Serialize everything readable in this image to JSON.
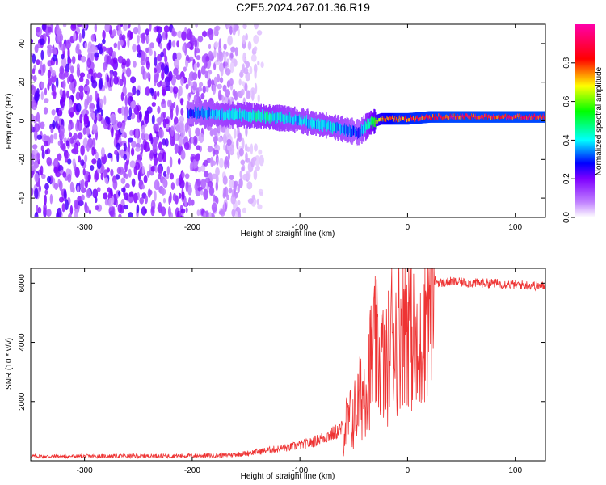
{
  "title": "C2E5.2024.267.01.36.R19",
  "chart_data": [
    {
      "type": "heatmap",
      "xlabel": "Height of straight line (km)",
      "ylabel": "Frequency (Hz)",
      "xlim": [
        -350,
        128
      ],
      "ylim": [
        -50,
        50
      ],
      "xticks": [
        -300,
        -200,
        -100,
        0,
        100
      ],
      "yticks": [
        -40,
        -20,
        0,
        20,
        40
      ],
      "colorbar": {
        "label": "Normalized spectral amplitude",
        "range": [
          0,
          1
        ],
        "ticks": [
          0.0,
          0.2,
          0.4,
          0.6,
          0.8
        ],
        "tick_labels": [
          "0.0",
          "0.2",
          "0.4",
          "0.6",
          "0.8"
        ],
        "colormap": [
          "#ffffff",
          "#7f00ff",
          "#0000ff",
          "#00ffff",
          "#00ff00",
          "#ffff00",
          "#ff0000",
          "#ff00aa"
        ]
      },
      "noise_region_x": [
        -350,
        -160
      ],
      "ridge": {
        "x": [
          -205,
          -190,
          -170,
          -150,
          -130,
          -110,
          -90,
          -70,
          -55,
          -45,
          -35,
          -25,
          -10,
          0,
          20,
          40,
          60,
          80,
          100,
          128
        ],
        "y": [
          4,
          4,
          3,
          3,
          2,
          1,
          -1,
          -3,
          -5,
          -6,
          -1,
          1,
          1,
          1,
          2,
          2,
          2,
          2,
          2,
          2
        ],
        "amplitude": [
          0.3,
          0.35,
          0.4,
          0.42,
          0.45,
          0.4,
          0.38,
          0.4,
          0.35,
          0.3,
          0.55,
          0.75,
          0.85,
          0.85,
          0.88,
          0.9,
          0.9,
          0.9,
          0.9,
          0.9
        ]
      },
      "grid": false
    },
    {
      "type": "line",
      "xlabel": "Height of straight line (km)",
      "ylabel": "SNR (10 * v/v)",
      "xlim": [
        -350,
        128
      ],
      "ylim": [
        0,
        6500
      ],
      "xticks": [
        -300,
        -200,
        -100,
        0,
        100
      ],
      "yticks": [
        2000,
        4000,
        6000
      ],
      "color": "#ee3333",
      "series": [
        {
          "x": [
            -350,
            -300,
            -250,
            -200,
            -170,
            -150,
            -130,
            -110,
            -90,
            -70,
            -60,
            -50,
            -45,
            -40,
            -35,
            -30,
            -25,
            -20,
            -15,
            -10,
            -5,
            0,
            5,
            10,
            15,
            20,
            25,
            30,
            40,
            60,
            80,
            100,
            128
          ],
          "y": [
            150,
            150,
            160,
            170,
            180,
            250,
            350,
            450,
            600,
            900,
            1100,
            1500,
            2000,
            2500,
            3200,
            3800,
            3500,
            3000,
            4500,
            4200,
            4800,
            5000,
            4200,
            3000,
            4800,
            5800,
            6100,
            6000,
            6050,
            6000,
            6000,
            5950,
            5900
          ]
        }
      ],
      "grid": false
    }
  ]
}
